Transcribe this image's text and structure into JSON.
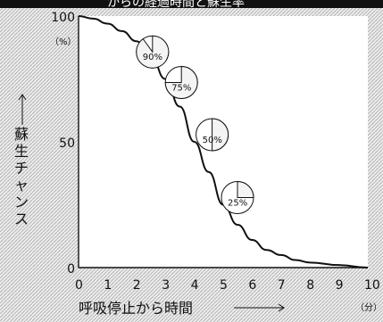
{
  "title_fragment": "からの経過時間と蘇生率",
  "chart_data": {
    "type": "line",
    "title": "",
    "xlabel": "呼吸停止から時間",
    "x_unit": "（分）",
    "ylabel": "蘇生チャンス",
    "y_unit": "（%）",
    "xlim": [
      0,
      10
    ],
    "ylim": [
      0,
      100
    ],
    "x_ticks": [
      "0",
      "1",
      "2",
      "3",
      "4",
      "5",
      "6",
      "7",
      "8",
      "9",
      "10"
    ],
    "y_ticks": [
      "0",
      "50",
      "100"
    ],
    "series": [
      {
        "x": [
          0,
          0.5,
          1,
          1.5,
          2,
          2.5,
          3,
          3.5,
          4,
          4.5,
          5,
          5.5,
          6,
          6.5,
          7,
          7.5,
          8,
          9,
          10
        ],
        "values": [
          100,
          99,
          97,
          94,
          90,
          84,
          75,
          64,
          50,
          38,
          25,
          17,
          11,
          7,
          5,
          3,
          2,
          1,
          0
        ]
      }
    ],
    "highlight_points": [
      {
        "x": 2,
        "y": 90,
        "label": "90%"
      },
      {
        "x": 3,
        "y": 75,
        "label": "75%"
      },
      {
        "x": 4,
        "y": 50,
        "label": "50%"
      },
      {
        "x": 5,
        "y": 25,
        "label": "25%"
      }
    ],
    "grid": true,
    "colors": {
      "line": "#111111",
      "block_fill": "#e4e4e4",
      "background_hatch": "#bdbdbd",
      "pie_fill": "#ffffff"
    }
  }
}
